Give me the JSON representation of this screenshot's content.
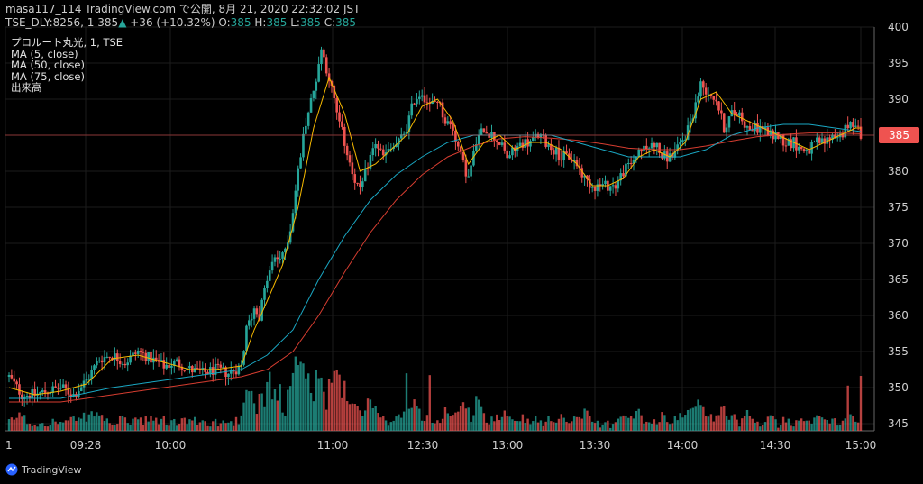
{
  "header": {
    "line1": "masa117_114 TradingView.com で公開, 8月 21, 2020 22:32:02 JST",
    "symbol": "TSE_DLY:8256, 1",
    "price": "385",
    "change": "+36 (+10.32%)",
    "o_label": "O:",
    "o_val": "385",
    "h_label": "H:",
    "h_val": "385",
    "l_label": "L:",
    "l_val": "385",
    "c_label": "C:",
    "c_val": "385"
  },
  "legend": [
    "プロルート丸光, 1, TSE",
    "MA (5, close)",
    "MA (50, close)",
    "MA (75, close)",
    "出来高"
  ],
  "brand": "TradingView",
  "colors": {
    "background": "#000000",
    "grid": "#1c1c1c",
    "up": "#26a69a",
    "down": "#ef5350",
    "ma5": "#f5b800",
    "ma50": "#1aa8c4",
    "ma75": "#d63d30",
    "price_line": "#ef5350"
  },
  "chart_data": {
    "type": "candlestick",
    "title": "プロルート丸光, 1, TSE",
    "ylim": [
      344,
      400
    ],
    "y_ticks": [
      400,
      395,
      390,
      385,
      380,
      375,
      370,
      365,
      360,
      355,
      350,
      345
    ],
    "x_ticks": [
      "1",
      "09:28",
      "10:00",
      "11:00",
      "12:30",
      "13:00",
      "13:30",
      "14:00",
      "14:30",
      "15:00"
    ],
    "last_price": 385,
    "close_path": [
      [
        0,
        351.5
      ],
      [
        5,
        349
      ],
      [
        10,
        349
      ],
      [
        15,
        349.5
      ],
      [
        20,
        350
      ],
      [
        25,
        349
      ],
      [
        30,
        351
      ],
      [
        35,
        354
      ],
      [
        40,
        354.5
      ],
      [
        45,
        353.5
      ],
      [
        50,
        355
      ],
      [
        55,
        354
      ],
      [
        60,
        353
      ],
      [
        65,
        353.5
      ],
      [
        70,
        352.5
      ],
      [
        75,
        352
      ],
      [
        80,
        352.5
      ],
      [
        85,
        352
      ],
      [
        90,
        353
      ],
      [
        92,
        358
      ],
      [
        95,
        361
      ],
      [
        97,
        360
      ],
      [
        100,
        365
      ],
      [
        103,
        368
      ],
      [
        106,
        368
      ],
      [
        109,
        372
      ],
      [
        112,
        380
      ],
      [
        115,
        387
      ],
      [
        118,
        391
      ],
      [
        121,
        397
      ],
      [
        124,
        393
      ],
      [
        127,
        388
      ],
      [
        130,
        384
      ],
      [
        133,
        380
      ],
      [
        136,
        377
      ],
      [
        139,
        381
      ],
      [
        142,
        384
      ],
      [
        145,
        382
      ],
      [
        148,
        383
      ],
      [
        151,
        384
      ],
      [
        154,
        386
      ],
      [
        157,
        390
      ],
      [
        160,
        391
      ],
      [
        163,
        389
      ],
      [
        166,
        390
      ],
      [
        169,
        387
      ],
      [
        172,
        386
      ],
      [
        175,
        382
      ],
      [
        178,
        379
      ],
      [
        181,
        384
      ],
      [
        184,
        386
      ],
      [
        187,
        385
      ],
      [
        190,
        384
      ],
      [
        193,
        382
      ],
      [
        196,
        383
      ],
      [
        199,
        384
      ],
      [
        202,
        384
      ],
      [
        205,
        385
      ],
      [
        208,
        384
      ],
      [
        211,
        383
      ],
      [
        214,
        382
      ],
      [
        217,
        382
      ],
      [
        220,
        381
      ],
      [
        223,
        379
      ],
      [
        226,
        378
      ],
      [
        229,
        378
      ],
      [
        232,
        378
      ],
      [
        235,
        378
      ],
      [
        238,
        380
      ],
      [
        241,
        381
      ],
      [
        244,
        383
      ],
      [
        247,
        383
      ],
      [
        250,
        384
      ],
      [
        253,
        382
      ],
      [
        256,
        382
      ],
      [
        259,
        383
      ],
      [
        262,
        385
      ],
      [
        265,
        388
      ],
      [
        268,
        392
      ],
      [
        271,
        391
      ],
      [
        274,
        390
      ],
      [
        277,
        386
      ],
      [
        280,
        388
      ],
      [
        283,
        388
      ],
      [
        286,
        386
      ],
      [
        289,
        386
      ],
      [
        292,
        386
      ],
      [
        295,
        385
      ],
      [
        298,
        385
      ],
      [
        301,
        384
      ],
      [
        304,
        384
      ],
      [
        307,
        383
      ],
      [
        310,
        383
      ],
      [
        313,
        384
      ],
      [
        316,
        384
      ],
      [
        319,
        385
      ],
      [
        322,
        385
      ],
      [
        325,
        386
      ],
      [
        328,
        387
      ],
      [
        330,
        385
      ]
    ],
    "ma5": [
      [
        0,
        350
      ],
      [
        10,
        349
      ],
      [
        20,
        349.5
      ],
      [
        30,
        350.5
      ],
      [
        40,
        354
      ],
      [
        50,
        354.5
      ],
      [
        60,
        353.5
      ],
      [
        70,
        352.5
      ],
      [
        80,
        352.5
      ],
      [
        90,
        353
      ],
      [
        95,
        358
      ],
      [
        100,
        362
      ],
      [
        106,
        367
      ],
      [
        112,
        375
      ],
      [
        118,
        386
      ],
      [
        124,
        393
      ],
      [
        130,
        388
      ],
      [
        136,
        380
      ],
      [
        142,
        381
      ],
      [
        148,
        383
      ],
      [
        154,
        385
      ],
      [
        160,
        389
      ],
      [
        166,
        390
      ],
      [
        172,
        387
      ],
      [
        178,
        381
      ],
      [
        184,
        384
      ],
      [
        190,
        385
      ],
      [
        196,
        383
      ],
      [
        202,
        384
      ],
      [
        208,
        384
      ],
      [
        214,
        383
      ],
      [
        220,
        381
      ],
      [
        226,
        378
      ],
      [
        232,
        378
      ],
      [
        238,
        379
      ],
      [
        244,
        382
      ],
      [
        250,
        383
      ],
      [
        256,
        382
      ],
      [
        262,
        384
      ],
      [
        268,
        390
      ],
      [
        274,
        391
      ],
      [
        280,
        388
      ],
      [
        286,
        387
      ],
      [
        292,
        386
      ],
      [
        298,
        385
      ],
      [
        304,
        384
      ],
      [
        310,
        383
      ],
      [
        316,
        384
      ],
      [
        322,
        385
      ],
      [
        328,
        386
      ],
      [
        330,
        386
      ]
    ],
    "ma50": [
      [
        0,
        348.5
      ],
      [
        20,
        348.5
      ],
      [
        40,
        350
      ],
      [
        60,
        351
      ],
      [
        80,
        352
      ],
      [
        90,
        352.5
      ],
      [
        100,
        354.5
      ],
      [
        110,
        358
      ],
      [
        120,
        365
      ],
      [
        130,
        371
      ],
      [
        140,
        376
      ],
      [
        150,
        379.5
      ],
      [
        160,
        382
      ],
      [
        170,
        384
      ],
      [
        180,
        385
      ],
      [
        190,
        385
      ],
      [
        200,
        385
      ],
      [
        210,
        385
      ],
      [
        220,
        384
      ],
      [
        230,
        383
      ],
      [
        240,
        382
      ],
      [
        250,
        382
      ],
      [
        260,
        382
      ],
      [
        270,
        383
      ],
      [
        280,
        385
      ],
      [
        290,
        386
      ],
      [
        300,
        386.5
      ],
      [
        310,
        386.5
      ],
      [
        320,
        386
      ],
      [
        330,
        385.5
      ]
    ],
    "ma75": [
      [
        0,
        348
      ],
      [
        20,
        348
      ],
      [
        40,
        349
      ],
      [
        60,
        350
      ],
      [
        80,
        351
      ],
      [
        90,
        351.5
      ],
      [
        100,
        352.5
      ],
      [
        110,
        355
      ],
      [
        120,
        360
      ],
      [
        130,
        366
      ],
      [
        140,
        371.5
      ],
      [
        150,
        376
      ],
      [
        160,
        379.5
      ],
      [
        170,
        382
      ],
      [
        180,
        383.5
      ],
      [
        190,
        384.5
      ],
      [
        200,
        384.8
      ],
      [
        210,
        384.6
      ],
      [
        220,
        384.3
      ],
      [
        230,
        383.8
      ],
      [
        240,
        383.2
      ],
      [
        250,
        383
      ],
      [
        260,
        383
      ],
      [
        270,
        383.5
      ],
      [
        280,
        384.2
      ],
      [
        290,
        384.8
      ],
      [
        300,
        385.1
      ],
      [
        310,
        385.3
      ],
      [
        320,
        385.3
      ],
      [
        330,
        385.2
      ]
    ],
    "volume_max_ticks": 330
  }
}
